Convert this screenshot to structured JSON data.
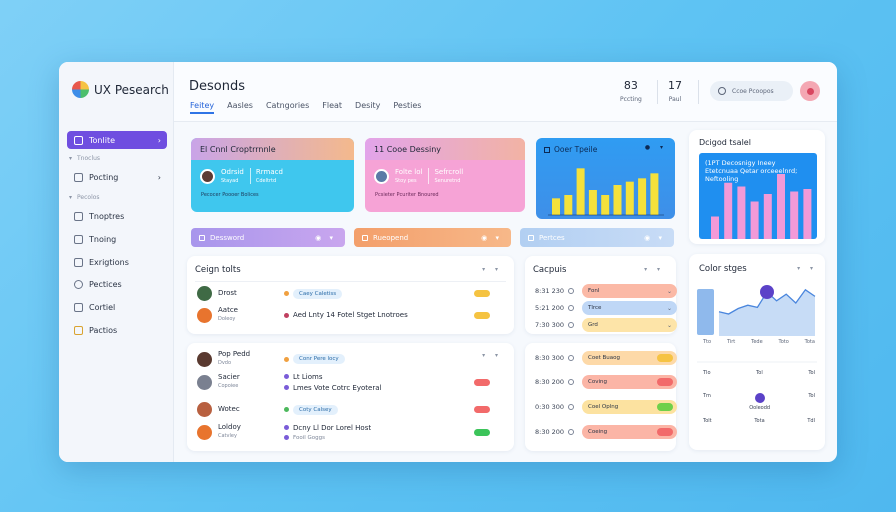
{
  "app": {
    "title": "UX Pesearch"
  },
  "sidebar": {
    "active_item": {
      "label": "Tonlite"
    },
    "sections": [
      "Tnoclus",
      "Pecolos"
    ],
    "items": [
      {
        "label": "Pocting",
        "icon": "folder-icon"
      },
      {
        "label": "Tnoptres",
        "icon": "monitor-icon"
      },
      {
        "label": "Tnoing",
        "icon": "book-icon"
      },
      {
        "label": "Exrigtions",
        "icon": "grid-icon"
      },
      {
        "label": "Pectices",
        "icon": "settings-icon"
      },
      {
        "label": "Cortiel",
        "icon": "chat-icon"
      },
      {
        "label": "Pactios",
        "icon": "tag-icon"
      }
    ]
  },
  "header": {
    "title": "Desonds",
    "tabs": [
      "Feitey",
      "Aasles",
      "Catngories",
      "Fleat",
      "Desity",
      "Pesties"
    ],
    "active_tab": 0,
    "stats": [
      {
        "value": "83",
        "label": "Pccting"
      },
      {
        "value": "17",
        "label": "Paul"
      }
    ],
    "search": {
      "placeholder": "Ccoe Pcoopos"
    }
  },
  "cards": [
    {
      "title": "El Cnnl Croptrrnnle",
      "lines": [
        [
          "Odrsid",
          "Rrmacd"
        ],
        [
          "Stayad",
          "Cdeltrtd"
        ]
      ],
      "footer": "Pecocer Poooer Bolices"
    },
    {
      "title": "11 Cooe Dessiny",
      "lines": [
        [
          "Folte lol",
          "Sefrcroll"
        ],
        [
          "Stoy pes",
          "Senuretnd"
        ]
      ],
      "footer": "Pcsieter Pcuriter Bnoured"
    },
    {
      "title": "Ooer Tpeile"
    },
    {
      "title": "Dcigod tsalel",
      "text": "(1PT Decosnigy Ineey Etetcnuaa Qetar orceeelnrd; Neftooling"
    }
  ],
  "pills": [
    {
      "label": "Dessword",
      "color": "#9c8ae6"
    },
    {
      "label": "Rueopend",
      "color": "#f7a36b"
    },
    {
      "label": "Pertces",
      "color": "#a9c6ef"
    }
  ],
  "design_tasks": {
    "title": "Ceign tolts",
    "rows": [
      {
        "name": "Drost",
        "sub": "",
        "tag": "Caey Caletiss",
        "status": "#f5c341",
        "avatar": "#3f6a45",
        "dot": "#f0a040"
      },
      {
        "name": "Aatce",
        "sub": "Doleoy",
        "mid": "Aed Lnty 14 Fotel Stget Lnotroes",
        "status": "#f5c341",
        "avatar": "#e8742e",
        "dot": "#c04060"
      }
    ]
  },
  "team_list": {
    "rows": [
      {
        "name": "Pop Pedd",
        "sub": "Dvdo",
        "tag": "Conr Pere locy",
        "status": "#f26a6a",
        "avatar": "#5a3a30",
        "dot": "#f0a040"
      },
      {
        "name": "Sacier",
        "sub": "Copoiee",
        "mid": "Lt Lioms",
        "mid2": "Lmes Vote Cotrc Eyoteral",
        "status": "#f26a6a",
        "avatar": "#7a8090",
        "dot": "#7a5cd8"
      },
      {
        "name": "Wotec",
        "sub": "",
        "tag": "Coty Calsey",
        "status": "#f26a6a",
        "avatar": "#b86040",
        "dot": "#4cb85c"
      },
      {
        "name": "Loldoy",
        "sub": "Catvley",
        "mid": "Dcny Ll Dor Lorel Host",
        "sub2": "Fooil Goggs",
        "status": "#3cc45a",
        "avatar": "#e8742e",
        "dot": "#7a5cd8"
      }
    ]
  },
  "capacity": {
    "title": "Cacpuis",
    "rows": [
      {
        "time": "8:31 230",
        "label": "Fonl",
        "color": "#fbb9a6",
        "icon": "chevron-down-icon"
      },
      {
        "time": "5:21 200",
        "label": "Tlrce",
        "color": "#bfd7f6",
        "icon": "chevron-down-icon"
      },
      {
        "time": "7:30 300",
        "label": "Grd",
        "color": "#fde4a8",
        "icon": "chevron-down-icon"
      }
    ]
  },
  "schedule": {
    "rows": [
      {
        "time": "8:30 300",
        "label": "Coet Buaog",
        "color": "#fdd9a8",
        "knob": "#f6c343"
      },
      {
        "time": "8:30 200",
        "label": "Coving",
        "color": "#fbb5a6",
        "knob": "#f26a6a"
      },
      {
        "time": "0:30 300",
        "label": "Coel Oplng",
        "color": "#fce2a0",
        "knob": "#6fd04a"
      },
      {
        "time": "8:30 200",
        "label": "Coeing",
        "color": "#fbb5a6",
        "knob": "#f26a6a"
      }
    ]
  },
  "color_stages": {
    "title": "Color stges",
    "x_labels": [
      "Tto",
      "Tirt",
      "Tede",
      "Toto",
      "Tota"
    ],
    "bottom": [
      [
        "Tlo",
        "Tol",
        "Tol"
      ],
      [
        "Tm",
        "Ooleodd",
        "Tol"
      ],
      [
        "Tolt",
        "Tota",
        "Tdl"
      ]
    ]
  },
  "chart_data": [
    {
      "type": "bar",
      "title": "Ooer Tpeile",
      "values": [
        10,
        12,
        28,
        15,
        12,
        18,
        20,
        22,
        25
      ]
    },
    {
      "type": "bar",
      "title": "Dcigod tsalel",
      "values": [
        18,
        45,
        42,
        30,
        36,
        52,
        38,
        40
      ]
    },
    {
      "type": "area",
      "title": "Color stges",
      "values": [
        22,
        20,
        25,
        28,
        26,
        40,
        32,
        38,
        30,
        42,
        36
      ]
    }
  ]
}
